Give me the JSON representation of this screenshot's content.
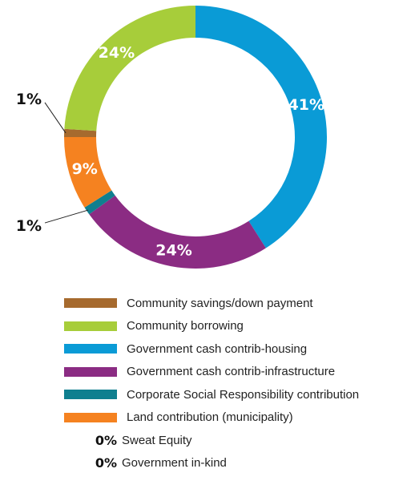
{
  "chart_data": {
    "type": "pie",
    "donut": true,
    "slices": [
      {
        "label": "Government cash contrib-housing",
        "value": 41,
        "display": "41%",
        "color": "#0a9bd6",
        "label_inside": true
      },
      {
        "label": "Government cash contrib-infrastructure",
        "value": 24,
        "display": "24%",
        "color": "#8b2c83",
        "label_inside": true
      },
      {
        "label": "Corporate Social Responsibility contribution",
        "value": 1,
        "display": "1%",
        "color": "#0f7f8f",
        "label_inside": false
      },
      {
        "label": "Land contribution (municipality)",
        "value": 9,
        "display": "9%",
        "color": "#f58220",
        "label_inside": true
      },
      {
        "label": "Community savings/down payment",
        "value": 1,
        "display": "1%",
        "color": "#a66a2e",
        "label_inside": false
      },
      {
        "label": "Community borrowing",
        "value": 24,
        "display": "24%",
        "color": "#a7cd3a",
        "label_inside": true
      }
    ],
    "legend": {
      "placement": "bottom",
      "items": [
        {
          "label": "Community savings/down payment",
          "color": "#a66a2e"
        },
        {
          "label": "Community borrowing",
          "color": "#a7cd3a"
        },
        {
          "label": "Government cash contrib-housing",
          "color": "#0a9bd6"
        },
        {
          "label": "Government cash contrib-infrastructure",
          "color": "#8b2c83"
        },
        {
          "label": "Corporate Social Responsibility contribution",
          "color": "#0f7f8f"
        },
        {
          "label": "Land contribution (municipality)",
          "color": "#f58220"
        }
      ],
      "zero_items": [
        {
          "value": "0%",
          "label": "Sweat Equity"
        },
        {
          "value": "0%",
          "label": "Government in-kind"
        }
      ]
    }
  }
}
